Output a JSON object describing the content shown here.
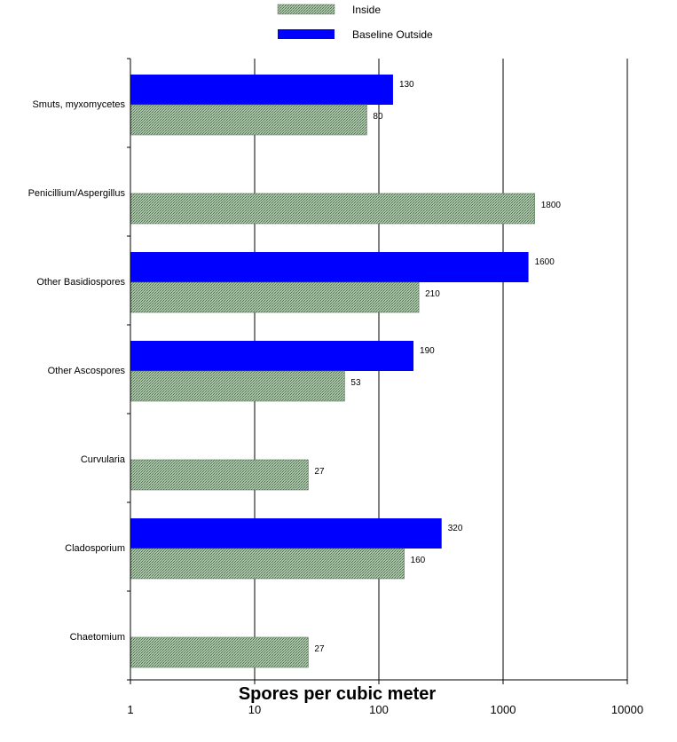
{
  "chart_data": {
    "type": "bar",
    "orientation": "horizontal",
    "x_scale": "log",
    "xlim": [
      1,
      10000
    ],
    "xticks": [
      "1",
      "10",
      "100",
      "1000",
      "10000"
    ],
    "xlabel": "Spores per cubic meter",
    "ylabel": "",
    "title": "",
    "grid": true,
    "legend_position": "top",
    "categories": [
      "Smuts, myxomycetes",
      "Penicillium/Aspergillus",
      "Other Basidiospores",
      "Other Ascospores",
      "Curvularia",
      "Cladosporium",
      "Chaetomium"
    ],
    "series": [
      {
        "name": "Inside",
        "color": "#8fb08f",
        "pattern": "crosshatch",
        "values": [
          80,
          1800,
          210,
          53,
          27,
          160,
          27
        ],
        "labels": [
          "80",
          "1800",
          "210",
          "53",
          "27",
          "160",
          "27"
        ]
      },
      {
        "name": "Baseline Outside",
        "color": "#0000ff",
        "values": [
          130,
          null,
          1600,
          190,
          null,
          320,
          null
        ],
        "labels": [
          "130",
          "",
          "1600",
          "190",
          "",
          "320",
          ""
        ]
      }
    ]
  }
}
